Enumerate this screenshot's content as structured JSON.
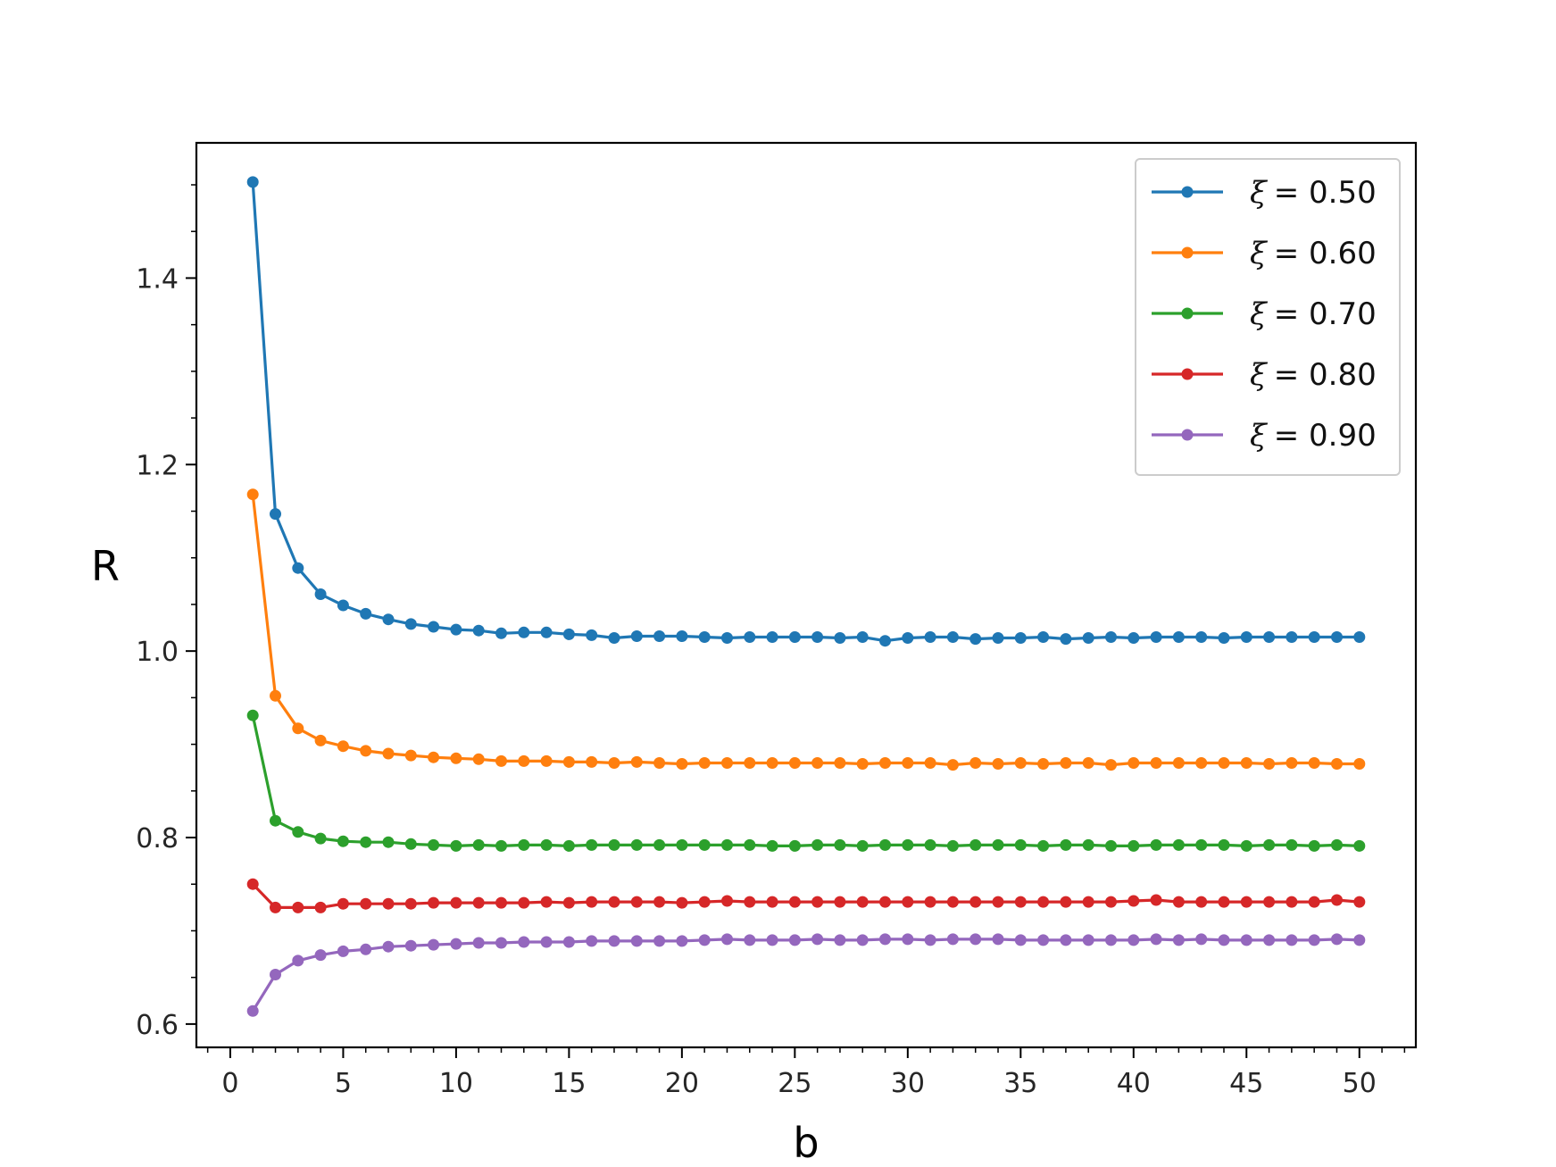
{
  "chart_data": {
    "type": "line",
    "title": "",
    "xlabel": "b",
    "ylabel": "R",
    "xlim": [
      -1.5,
      52.5
    ],
    "ylim": [
      0.575,
      1.545
    ],
    "xticks": [
      0,
      5,
      10,
      15,
      20,
      25,
      30,
      35,
      40,
      45,
      50
    ],
    "xtick_labels": [
      "0",
      "5",
      "10",
      "15",
      "20",
      "25",
      "30",
      "35",
      "40",
      "45",
      "50"
    ],
    "yticks": [
      0.6,
      0.8,
      1.0,
      1.2,
      1.4
    ],
    "ytick_labels": [
      "0.6",
      "0.8",
      "1.0",
      "1.2",
      "1.4"
    ],
    "grid": false,
    "legend_position": "top-right",
    "x": [
      1,
      2,
      3,
      4,
      5,
      6,
      7,
      8,
      9,
      10,
      11,
      12,
      13,
      14,
      15,
      16,
      17,
      18,
      19,
      20,
      21,
      22,
      23,
      24,
      25,
      26,
      27,
      28,
      29,
      30,
      31,
      32,
      33,
      34,
      35,
      36,
      37,
      38,
      39,
      40,
      41,
      42,
      43,
      44,
      45,
      46,
      47,
      48,
      49,
      50
    ],
    "series": [
      {
        "name": "ξ = 0.50",
        "legend_symbol": "ξ",
        "legend_value": "= 0.50",
        "color": "#1f77b4",
        "values": [
          1.503,
          1.147,
          1.089,
          1.061,
          1.049,
          1.04,
          1.034,
          1.029,
          1.026,
          1.023,
          1.022,
          1.019,
          1.02,
          1.02,
          1.018,
          1.017,
          1.014,
          1.016,
          1.016,
          1.016,
          1.015,
          1.014,
          1.015,
          1.015,
          1.015,
          1.015,
          1.014,
          1.015,
          1.011,
          1.014,
          1.015,
          1.015,
          1.013,
          1.014,
          1.014,
          1.015,
          1.013,
          1.014,
          1.015,
          1.014,
          1.015,
          1.015,
          1.015,
          1.014,
          1.015,
          1.015,
          1.015,
          1.015,
          1.015,
          1.015
        ]
      },
      {
        "name": "ξ = 0.60",
        "legend_symbol": "ξ",
        "legend_value": "= 0.60",
        "color": "#ff7f0e",
        "values": [
          1.168,
          0.952,
          0.917,
          0.904,
          0.898,
          0.893,
          0.89,
          0.888,
          0.886,
          0.885,
          0.884,
          0.882,
          0.882,
          0.882,
          0.881,
          0.881,
          0.88,
          0.881,
          0.88,
          0.879,
          0.88,
          0.88,
          0.88,
          0.88,
          0.88,
          0.88,
          0.88,
          0.879,
          0.88,
          0.88,
          0.88,
          0.878,
          0.88,
          0.879,
          0.88,
          0.879,
          0.88,
          0.88,
          0.878,
          0.88,
          0.88,
          0.88,
          0.88,
          0.88,
          0.88,
          0.879,
          0.88,
          0.88,
          0.879,
          0.879
        ]
      },
      {
        "name": "ξ = 0.70",
        "legend_symbol": "ξ",
        "legend_value": "= 0.70",
        "color": "#2ca02c",
        "values": [
          0.931,
          0.818,
          0.806,
          0.799,
          0.796,
          0.795,
          0.795,
          0.793,
          0.792,
          0.791,
          0.792,
          0.791,
          0.792,
          0.792,
          0.791,
          0.792,
          0.792,
          0.792,
          0.792,
          0.792,
          0.792,
          0.792,
          0.792,
          0.791,
          0.791,
          0.792,
          0.792,
          0.791,
          0.792,
          0.792,
          0.792,
          0.791,
          0.792,
          0.792,
          0.792,
          0.791,
          0.792,
          0.792,
          0.791,
          0.791,
          0.792,
          0.792,
          0.792,
          0.792,
          0.791,
          0.792,
          0.792,
          0.791,
          0.792,
          0.791
        ]
      },
      {
        "name": "ξ = 0.80",
        "legend_symbol": "ξ",
        "legend_value": "= 0.80",
        "color": "#d62728",
        "values": [
          0.75,
          0.725,
          0.725,
          0.725,
          0.729,
          0.729,
          0.729,
          0.729,
          0.73,
          0.73,
          0.73,
          0.73,
          0.73,
          0.731,
          0.73,
          0.731,
          0.731,
          0.731,
          0.731,
          0.73,
          0.731,
          0.732,
          0.731,
          0.731,
          0.731,
          0.731,
          0.731,
          0.731,
          0.731,
          0.731,
          0.731,
          0.731,
          0.731,
          0.731,
          0.731,
          0.731,
          0.731,
          0.731,
          0.731,
          0.732,
          0.733,
          0.731,
          0.731,
          0.731,
          0.731,
          0.731,
          0.731,
          0.731,
          0.733,
          0.731
        ]
      },
      {
        "name": "ξ = 0.90",
        "legend_symbol": "ξ",
        "legend_value": "= 0.90",
        "color": "#9467bd",
        "values": [
          0.614,
          0.653,
          0.668,
          0.674,
          0.678,
          0.68,
          0.683,
          0.684,
          0.685,
          0.686,
          0.687,
          0.687,
          0.688,
          0.688,
          0.688,
          0.689,
          0.689,
          0.689,
          0.689,
          0.689,
          0.69,
          0.691,
          0.69,
          0.69,
          0.69,
          0.691,
          0.69,
          0.69,
          0.691,
          0.691,
          0.69,
          0.691,
          0.691,
          0.691,
          0.69,
          0.69,
          0.69,
          0.69,
          0.69,
          0.69,
          0.691,
          0.69,
          0.691,
          0.69,
          0.69,
          0.69,
          0.69,
          0.69,
          0.691,
          0.69
        ]
      }
    ]
  }
}
